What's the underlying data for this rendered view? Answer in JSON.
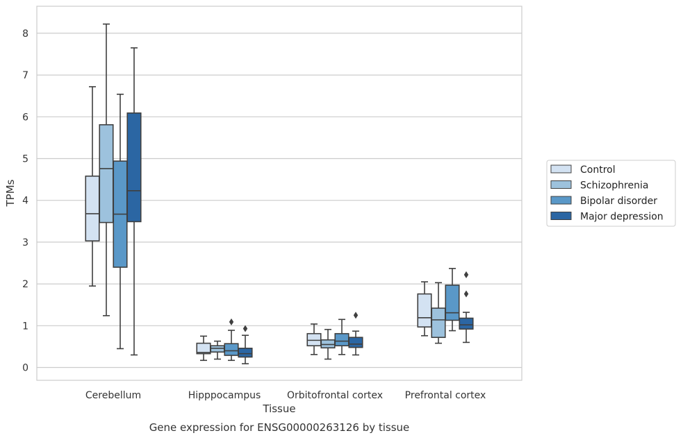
{
  "chart_data": {
    "type": "boxplot",
    "caption": "Gene expression for ENSG00000263126 by tissue",
    "xlabel": "Tissue",
    "ylabel": "TPMs",
    "ylim": [
      -0.3,
      8.65
    ],
    "yticks": [
      0,
      1,
      2,
      3,
      4,
      5,
      6,
      7,
      8
    ],
    "grid": "horizontal",
    "legend_position": "right-outside",
    "categories": [
      "Cerebellum",
      "Hipppocampus",
      "Orbitofrontal cortex",
      "Prefrontal cortex"
    ],
    "series": [
      {
        "name": "Control",
        "color": "#d3e2f2",
        "boxes": [
          {
            "whislo": 1.95,
            "q1": 3.03,
            "med": 3.68,
            "q3": 4.58,
            "whishi": 6.72,
            "fliers": []
          },
          {
            "whislo": 0.17,
            "q1": 0.33,
            "med": 0.36,
            "q3": 0.58,
            "whishi": 0.75,
            "fliers": []
          },
          {
            "whislo": 0.31,
            "q1": 0.52,
            "med": 0.65,
            "q3": 0.81,
            "whishi": 1.04,
            "fliers": []
          },
          {
            "whislo": 0.76,
            "q1": 0.97,
            "med": 1.19,
            "q3": 1.76,
            "whishi": 2.05,
            "fliers": []
          }
        ]
      },
      {
        "name": "Schizophrenia",
        "color": "#9dc2dd",
        "boxes": [
          {
            "whislo": 1.24,
            "q1": 3.47,
            "med": 4.76,
            "q3": 5.81,
            "whishi": 8.22,
            "fliers": []
          },
          {
            "whislo": 0.2,
            "q1": 0.37,
            "med": 0.46,
            "q3": 0.52,
            "whishi": 0.63,
            "fliers": []
          },
          {
            "whislo": 0.2,
            "q1": 0.47,
            "med": 0.55,
            "q3": 0.66,
            "whishi": 0.91,
            "fliers": []
          },
          {
            "whislo": 0.58,
            "q1": 0.72,
            "med": 1.14,
            "q3": 1.42,
            "whishi": 2.03,
            "fliers": []
          }
        ]
      },
      {
        "name": "Bipolar disorder",
        "color": "#5a98c8",
        "boxes": [
          {
            "whislo": 0.45,
            "q1": 2.4,
            "med": 3.67,
            "q3": 4.94,
            "whishi": 6.54,
            "fliers": []
          },
          {
            "whislo": 0.17,
            "q1": 0.29,
            "med": 0.4,
            "q3": 0.57,
            "whishi": 0.89,
            "fliers": [
              1.09
            ]
          },
          {
            "whislo": 0.31,
            "q1": 0.52,
            "med": 0.63,
            "q3": 0.81,
            "whishi": 1.15,
            "fliers": []
          },
          {
            "whislo": 0.88,
            "q1": 1.13,
            "med": 1.31,
            "q3": 1.97,
            "whishi": 2.37,
            "fliers": []
          }
        ]
      },
      {
        "name": "Major depression",
        "color": "#2b66a3",
        "boxes": [
          {
            "whislo": 0.3,
            "q1": 3.49,
            "med": 4.23,
            "q3": 6.09,
            "whishi": 7.65,
            "fliers": []
          },
          {
            "whislo": 0.09,
            "q1": 0.25,
            "med": 0.33,
            "q3": 0.46,
            "whishi": 0.77,
            "fliers": [
              0.93
            ]
          },
          {
            "whislo": 0.3,
            "q1": 0.48,
            "med": 0.56,
            "q3": 0.72,
            "whishi": 0.87,
            "fliers": [
              1.25
            ]
          },
          {
            "whislo": 0.6,
            "q1": 0.92,
            "med": 1.02,
            "q3": 1.18,
            "whishi": 1.32,
            "fliers": [
              1.76,
              2.22
            ]
          }
        ]
      }
    ]
  }
}
